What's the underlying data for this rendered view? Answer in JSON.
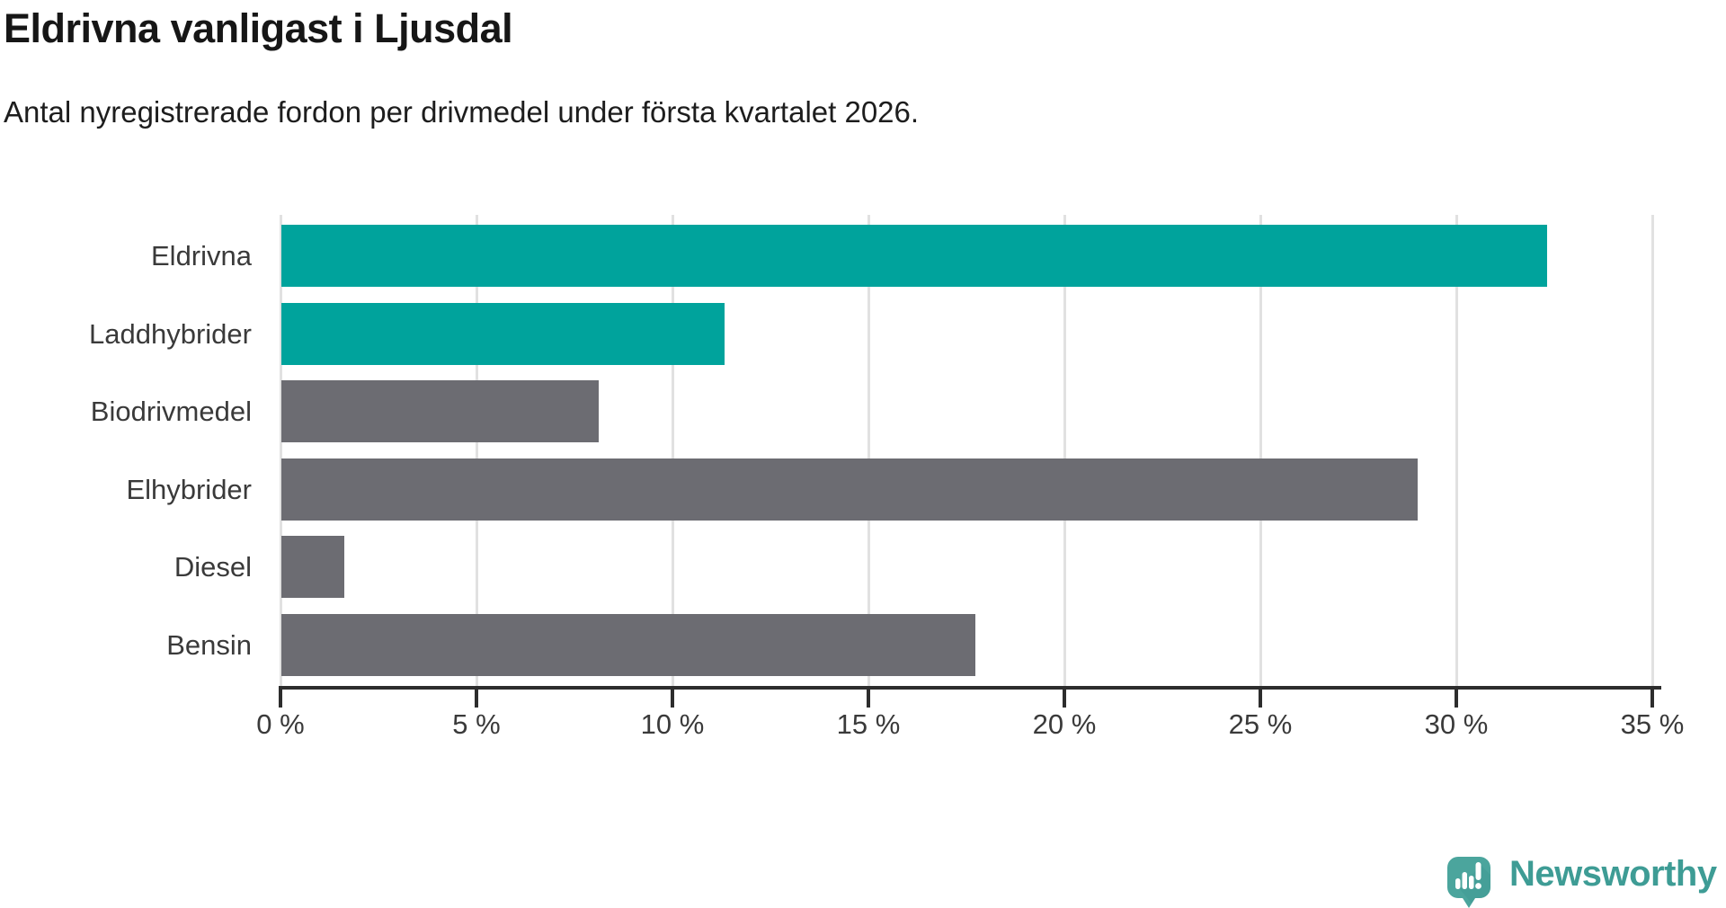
{
  "header": {
    "title": "Eldrivna vanligast i Ljusdal",
    "subtitle": "Antal nyregistrerade fordon per drivmedel under första kvartalet 2026."
  },
  "chart_data": {
    "type": "bar",
    "orientation": "horizontal",
    "title": "Eldrivna vanligast i Ljusdal",
    "subtitle": "Antal nyregistrerade fordon per drivmedel under första kvartalet 2026.",
    "categories": [
      "Eldrivna",
      "Laddhybrider",
      "Biodrivmedel",
      "Elhybrider",
      "Diesel",
      "Bensin"
    ],
    "values": [
      32.3,
      11.3,
      8.1,
      29.0,
      1.6,
      17.7
    ],
    "unit": "%",
    "xlim": [
      0,
      35
    ],
    "x_ticks": [
      0,
      5,
      10,
      15,
      20,
      25,
      30,
      35
    ],
    "x_tick_labels": [
      "0 %",
      "5 %",
      "10 %",
      "15 %",
      "20 %",
      "25 %",
      "30 %",
      "35 %"
    ],
    "bar_colors": [
      "#00a39c",
      "#00a39c",
      "#6c6c72",
      "#6c6c72",
      "#6c6c72",
      "#6c6c72"
    ],
    "highlight_color": "#00a39c",
    "default_color": "#6c6c72",
    "grid": true,
    "legend": false
  },
  "branding": {
    "logo_text": "Newsworthy",
    "logo_icon": "newsworthy-speech-bubble-chart-icon",
    "wordmark_color": "#3e9c95",
    "icon_color": "#4ba59d"
  },
  "colors": {
    "background": "#ffffff",
    "axis": "#2d2d2d",
    "gridline": "#e1e1e1",
    "text": "#3a3a3a",
    "title_text": "#161616"
  }
}
